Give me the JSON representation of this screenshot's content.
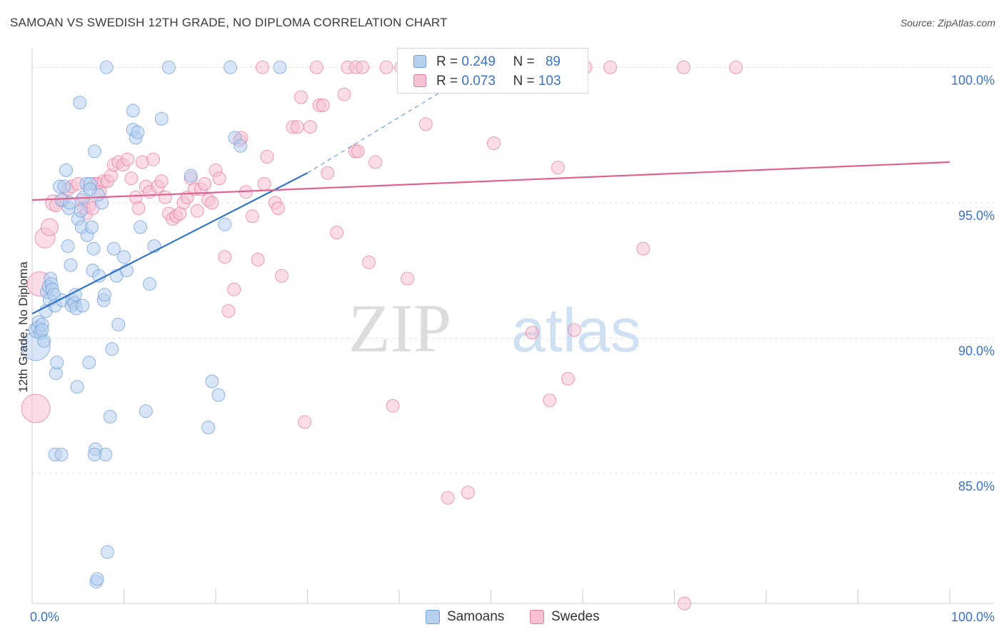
{
  "header": {
    "title": "SAMOAN VS SWEDISH 12TH GRADE, NO DIPLOMA CORRELATION CHART",
    "source": "Source: ZipAtlas.com"
  },
  "watermark": {
    "part1": "ZIP",
    "part2": "atlas"
  },
  "legend": {
    "samoans": {
      "r_label": "R = ",
      "r_value": "0.249",
      "n_label": "N = ",
      "n_value": "89",
      "color": "#6f9fd8",
      "fill": "#b7d0ef"
    },
    "swedes": {
      "r_label": "R = ",
      "r_value": "0.073",
      "n_label": "N = ",
      "n_value": "103",
      "color": "#e47ca0",
      "fill": "#f6c1d3"
    }
  },
  "chart_data": {
    "type": "scatter",
    "title": "SAMOAN VS SWEDISH 12TH GRADE, NO DIPLOMA CORRELATION CHART",
    "xlabel": "",
    "ylabel": "12th Grade, No Diploma",
    "xlim": [
      0,
      100
    ],
    "ylim": [
      80.2,
      100.8
    ],
    "x_tick_labels": [
      "0.0%",
      "100.0%"
    ],
    "y_ticks": [
      85,
      90,
      95,
      100
    ],
    "y_tick_labels": [
      "85.0%",
      "90.0%",
      "95.0%",
      "100.0%"
    ],
    "grid": true,
    "legend_position": "bottom",
    "series": [
      {
        "name": "Samoans",
        "color": "#6f9fd8",
        "fill": "#b7d0ef",
        "trend": {
          "x": [
            0,
            30
          ],
          "y": [
            90.9,
            96.1
          ],
          "dash_to": [
            47,
            99.6
          ],
          "color": "#2f74c9"
        },
        "points": [
          [
            0.4,
            89.7,
            20
          ],
          [
            0.5,
            90.3,
            11
          ],
          [
            0.6,
            90.4,
            9
          ],
          [
            0.7,
            90.6,
            9
          ],
          [
            0.9,
            90.2,
            9
          ],
          [
            1.1,
            90.5,
            9
          ],
          [
            1.3,
            89.9,
            9
          ],
          [
            1.5,
            91.0,
            9
          ],
          [
            1.6,
            91.7,
            9
          ],
          [
            1.8,
            91.9,
            9
          ],
          [
            1.9,
            91.4,
            9
          ],
          [
            2.0,
            92.2,
            9
          ],
          [
            2.1,
            92.0,
            9
          ],
          [
            2.2,
            91.8,
            9
          ],
          [
            2.4,
            91.6,
            9
          ],
          [
            2.5,
            91.2,
            9
          ],
          [
            2.6,
            88.7,
            9
          ],
          [
            2.7,
            89.1,
            9
          ],
          [
            3.0,
            95.6,
            9
          ],
          [
            3.2,
            95.1,
            9
          ],
          [
            3.3,
            91.4,
            9
          ],
          [
            3.5,
            95.6,
            9
          ],
          [
            3.7,
            96.2,
            9
          ],
          [
            3.9,
            93.4,
            9
          ],
          [
            4.0,
            94.8,
            9
          ],
          [
            4.1,
            95.0,
            9
          ],
          [
            4.2,
            92.7,
            9
          ],
          [
            4.3,
            91.2,
            9
          ],
          [
            4.4,
            91.4,
            9
          ],
          [
            4.6,
            91.3,
            9
          ],
          [
            4.7,
            91.6,
            9
          ],
          [
            4.8,
            91.1,
            9
          ],
          [
            4.9,
            88.2,
            9
          ],
          [
            5.0,
            94.4,
            9
          ],
          [
            5.2,
            98.7,
            9
          ],
          [
            5.4,
            94.1,
            9
          ],
          [
            5.5,
            91.2,
            9
          ],
          [
            5.6,
            95.2,
            9
          ],
          [
            5.9,
            95.7,
            9
          ],
          [
            6.0,
            93.8,
            9
          ],
          [
            6.2,
            89.1,
            9
          ],
          [
            6.3,
            95.7,
            9
          ],
          [
            6.5,
            94.1,
            9
          ],
          [
            6.6,
            92.5,
            9
          ],
          [
            6.7,
            93.3,
            9
          ],
          [
            6.8,
            96.9,
            9
          ],
          [
            6.9,
            85.9,
            9
          ],
          [
            7.0,
            81.0,
            9
          ],
          [
            7.1,
            81.1,
            9
          ],
          [
            7.3,
            92.3,
            9
          ],
          [
            7.6,
            95.0,
            9
          ],
          [
            7.8,
            91.4,
            9
          ],
          [
            7.9,
            91.6,
            9
          ],
          [
            8.0,
            85.7,
            9
          ],
          [
            8.2,
            82.1,
            9
          ],
          [
            8.5,
            87.1,
            9
          ],
          [
            8.7,
            89.6,
            9
          ],
          [
            8.9,
            93.3,
            9
          ],
          [
            9.2,
            92.3,
            9
          ],
          [
            9.4,
            90.5,
            9
          ],
          [
            10.0,
            93.0,
            9
          ],
          [
            10.3,
            92.5,
            9
          ],
          [
            11.0,
            97.7,
            9
          ],
          [
            11.3,
            97.4,
            9
          ],
          [
            11.5,
            97.6,
            9
          ],
          [
            11.8,
            94.1,
            9
          ],
          [
            12.4,
            87.3,
            9
          ],
          [
            12.8,
            92.0,
            9
          ],
          [
            13.3,
            93.4,
            9
          ],
          [
            14.1,
            98.1,
            9
          ],
          [
            17.3,
            96.0,
            9
          ],
          [
            19.2,
            86.7,
            9
          ],
          [
            19.6,
            88.4,
            9
          ],
          [
            20.3,
            87.9,
            9
          ],
          [
            21.0,
            94.2,
            9
          ],
          [
            21.6,
            100,
            9
          ],
          [
            22.1,
            97.4,
            9
          ],
          [
            22.7,
            97.1,
            9
          ],
          [
            27.0,
            100,
            9
          ],
          [
            8.1,
            100,
            9
          ],
          [
            14.9,
            100,
            9
          ],
          [
            11.0,
            98.4,
            9
          ],
          [
            2.5,
            85.7,
            9
          ],
          [
            3.2,
            85.7,
            9
          ],
          [
            6.8,
            85.7,
            9
          ],
          [
            1.1,
            90.3,
            9
          ],
          [
            5.3,
            94.7,
            9
          ],
          [
            7.2,
            95.3,
            9
          ],
          [
            6.3,
            95.5,
            9
          ]
        ]
      },
      {
        "name": "Swedes",
        "color": "#e47ca0",
        "fill": "#f6c1d3",
        "trend": {
          "x": [
            0,
            100
          ],
          "y": [
            95.1,
            96.5
          ],
          "color": "#e0608f"
        },
        "points": [
          [
            0.4,
            87.4,
            20
          ],
          [
            0.8,
            92.0,
            17
          ],
          [
            1.4,
            93.7,
            14
          ],
          [
            1.9,
            94.1,
            12
          ],
          [
            2.3,
            95.0,
            11
          ],
          [
            2.6,
            94.9,
            9
          ],
          [
            3.4,
            95.1,
            9
          ],
          [
            3.9,
            95.5,
            9
          ],
          [
            4.3,
            95.6,
            9
          ],
          [
            5.0,
            95.7,
            9
          ],
          [
            5.4,
            95.1,
            9
          ],
          [
            5.6,
            94.8,
            9
          ],
          [
            5.9,
            94.6,
            9
          ],
          [
            6.2,
            94.9,
            9
          ],
          [
            6.6,
            94.8,
            9
          ],
          [
            6.8,
            95.7,
            9
          ],
          [
            7.1,
            95.7,
            9
          ],
          [
            7.4,
            95.4,
            9
          ],
          [
            7.8,
            95.8,
            9
          ],
          [
            8.2,
            95.8,
            9
          ],
          [
            8.6,
            96.0,
            9
          ],
          [
            8.9,
            96.4,
            9
          ],
          [
            9.4,
            96.5,
            9
          ],
          [
            9.9,
            96.4,
            9
          ],
          [
            10.4,
            96.6,
            9
          ],
          [
            10.8,
            95.9,
            9
          ],
          [
            11.3,
            95.2,
            9
          ],
          [
            11.6,
            94.8,
            9
          ],
          [
            12.0,
            96.5,
            9
          ],
          [
            12.4,
            95.6,
            9
          ],
          [
            12.8,
            95.4,
            9
          ],
          [
            13.2,
            96.6,
            9
          ],
          [
            13.7,
            95.6,
            9
          ],
          [
            14.1,
            95.8,
            9
          ],
          [
            14.5,
            95.2,
            9
          ],
          [
            14.9,
            94.6,
            9
          ],
          [
            15.3,
            94.4,
            9
          ],
          [
            15.7,
            94.5,
            9
          ],
          [
            16.1,
            94.6,
            9
          ],
          [
            16.5,
            95.0,
            9
          ],
          [
            16.9,
            95.2,
            9
          ],
          [
            17.3,
            95.9,
            9
          ],
          [
            17.7,
            95.5,
            9
          ],
          [
            18.0,
            94.7,
            9
          ],
          [
            18.4,
            95.5,
            9
          ],
          [
            18.8,
            95.7,
            9
          ],
          [
            19.2,
            95.1,
            9
          ],
          [
            19.6,
            95.0,
            9
          ],
          [
            20.0,
            96.2,
            9
          ],
          [
            20.4,
            95.9,
            9
          ],
          [
            21.0,
            93.0,
            9
          ],
          [
            21.4,
            91.0,
            9
          ],
          [
            22.0,
            91.8,
            9
          ],
          [
            22.6,
            97.3,
            9
          ],
          [
            22.8,
            97.4,
            9
          ],
          [
            23.3,
            95.4,
            9
          ],
          [
            24.0,
            94.5,
            9
          ],
          [
            24.6,
            92.9,
            9
          ],
          [
            25.3,
            95.7,
            9
          ],
          [
            25.6,
            96.7,
            9
          ],
          [
            26.5,
            95.0,
            9
          ],
          [
            26.8,
            94.8,
            9
          ],
          [
            27.2,
            92.3,
            9
          ],
          [
            28.4,
            97.8,
            9
          ],
          [
            28.9,
            97.8,
            9
          ],
          [
            29.3,
            98.9,
            9
          ],
          [
            29.7,
            86.9,
            9
          ],
          [
            30.3,
            97.8,
            9
          ],
          [
            31.3,
            98.6,
            9
          ],
          [
            31.7,
            98.6,
            9
          ],
          [
            32.2,
            96.1,
            9
          ],
          [
            33.2,
            93.9,
            9
          ],
          [
            34.0,
            99.0,
            9
          ],
          [
            35.2,
            96.9,
            9
          ],
          [
            35.5,
            96.9,
            9
          ],
          [
            36.7,
            92.8,
            9
          ],
          [
            37.4,
            96.5,
            9
          ],
          [
            39.3,
            87.5,
            9
          ],
          [
            40.9,
            92.2,
            9
          ],
          [
            42.9,
            97.9,
            9
          ],
          [
            45.3,
            84.1,
            9
          ],
          [
            47.5,
            84.3,
            9
          ],
          [
            50.3,
            97.2,
            9
          ],
          [
            54.5,
            90.2,
            9
          ],
          [
            56.4,
            87.7,
            9
          ],
          [
            57.3,
            96.3,
            9
          ],
          [
            58.4,
            88.5,
            9
          ],
          [
            59.1,
            90.3,
            9
          ],
          [
            66.6,
            93.3,
            9
          ],
          [
            71.1,
            80.2,
            9
          ],
          [
            25.1,
            100,
            9
          ],
          [
            31.0,
            100,
            9
          ],
          [
            34.4,
            100,
            9
          ],
          [
            35.3,
            100,
            9
          ],
          [
            36.0,
            100,
            9
          ],
          [
            38.6,
            100,
            9
          ],
          [
            40.2,
            100,
            9
          ],
          [
            48.2,
            100,
            9
          ],
          [
            55.0,
            100,
            9
          ],
          [
            60.3,
            100,
            9
          ],
          [
            63.0,
            100,
            9
          ],
          [
            71.0,
            100,
            9
          ],
          [
            76.7,
            100,
            9
          ]
        ]
      }
    ]
  }
}
